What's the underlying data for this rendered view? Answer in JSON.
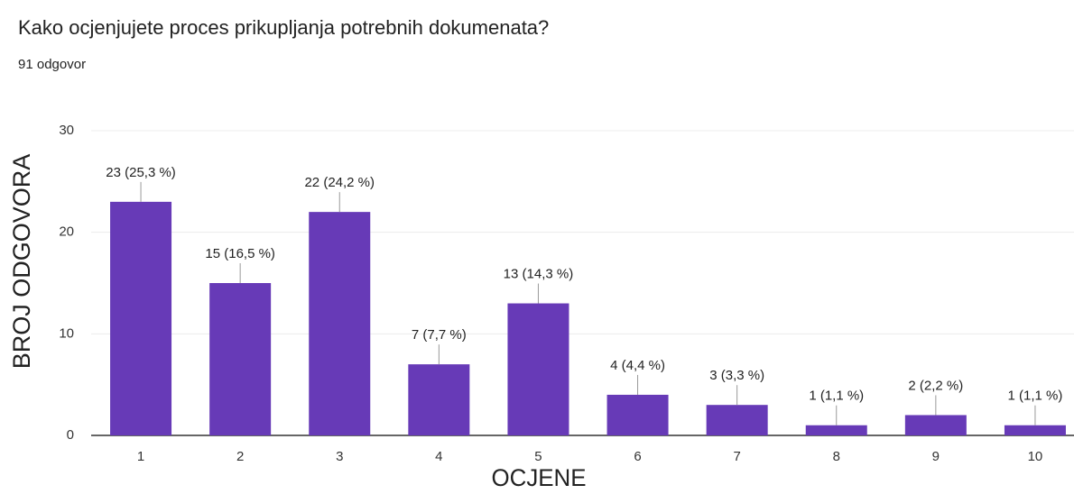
{
  "chart_data": {
    "type": "bar",
    "title": "Kako ocjenjujete proces prikupljanja potrebnih dokumenata?",
    "subtitle": "91 odgovor",
    "x_label": "OCJENE",
    "y_label": "BROJ ODGOVORA",
    "categories": [
      "1",
      "2",
      "3",
      "4",
      "5",
      "6",
      "7",
      "8",
      "9",
      "10"
    ],
    "values": [
      23,
      15,
      22,
      7,
      13,
      4,
      3,
      1,
      2,
      1
    ],
    "value_labels": [
      "23 (25,3 %)",
      "15 (16,5 %)",
      "22 (24,2 %)",
      "7 (7,7 %)",
      "13 (14,3 %)",
      "4 (4,4 %)",
      "3 (3,3 %)",
      "1 (1,1 %)",
      "2 (2,2 %)",
      "1 (1,1 %)"
    ],
    "color": "#673ab7",
    "ylim": [
      0,
      30
    ],
    "yticks": [
      0,
      10,
      20,
      30
    ],
    "grid": true
  }
}
